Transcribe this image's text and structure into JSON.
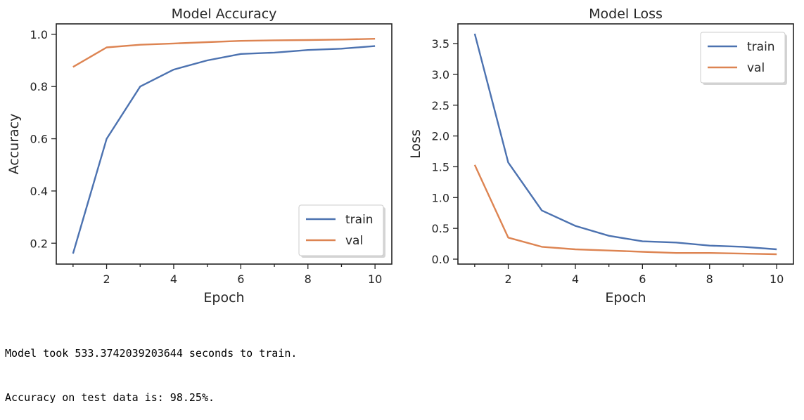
{
  "chart_data": [
    {
      "type": "line",
      "title": "Model Accuracy",
      "xlabel": "Epoch",
      "ylabel": "Accuracy",
      "x": [
        1,
        2,
        3,
        4,
        5,
        6,
        7,
        8,
        9,
        10
      ],
      "xlim": [
        0.5,
        10.5
      ],
      "ylim": [
        0.12,
        1.04
      ],
      "xticks": [
        2,
        4,
        6,
        8,
        10
      ],
      "xticks_minor": [
        1,
        3,
        5,
        7,
        9
      ],
      "yticks": [
        0.2,
        0.4,
        0.6,
        0.8,
        1.0
      ],
      "ytick_labels": [
        "0.2",
        "0.4",
        "0.6",
        "0.8",
        "1.0"
      ],
      "grid": false,
      "legend": "lower-right",
      "series": [
        {
          "name": "train",
          "color": "#4c72b0",
          "values": [
            0.16,
            0.6,
            0.8,
            0.865,
            0.9,
            0.925,
            0.93,
            0.94,
            0.945,
            0.955
          ]
        },
        {
          "name": "val",
          "color": "#dd8452",
          "values": [
            0.875,
            0.95,
            0.96,
            0.965,
            0.97,
            0.975,
            0.977,
            0.978,
            0.98,
            0.983
          ]
        }
      ]
    },
    {
      "type": "line",
      "title": "Model Loss",
      "xlabel": "Epoch",
      "ylabel": "Loss",
      "x": [
        1,
        2,
        3,
        4,
        5,
        6,
        7,
        8,
        9,
        10
      ],
      "xlim": [
        0.5,
        10.5
      ],
      "ylim": [
        -0.08,
        3.82
      ],
      "xticks": [
        2,
        4,
        6,
        8,
        10
      ],
      "xticks_minor": [
        1,
        3,
        5,
        7,
        9
      ],
      "yticks": [
        0.0,
        0.5,
        1.0,
        1.5,
        2.0,
        2.5,
        3.0,
        3.5
      ],
      "ytick_labels": [
        "0.0",
        "0.5",
        "1.0",
        "1.5",
        "2.0",
        "2.5",
        "3.0",
        "3.5"
      ],
      "grid": false,
      "legend": "top-right",
      "series": [
        {
          "name": "train",
          "color": "#4c72b0",
          "values": [
            3.66,
            1.57,
            0.79,
            0.54,
            0.38,
            0.29,
            0.27,
            0.22,
            0.2,
            0.16
          ]
        },
        {
          "name": "val",
          "color": "#dd8452",
          "values": [
            1.53,
            0.35,
            0.2,
            0.16,
            0.14,
            0.12,
            0.1,
            0.1,
            0.09,
            0.08
          ]
        }
      ]
    }
  ],
  "output": {
    "line1": "Model took 533.3742039203644 seconds to train.",
    "line2": "Accuracy on test data is: 98.25%."
  }
}
